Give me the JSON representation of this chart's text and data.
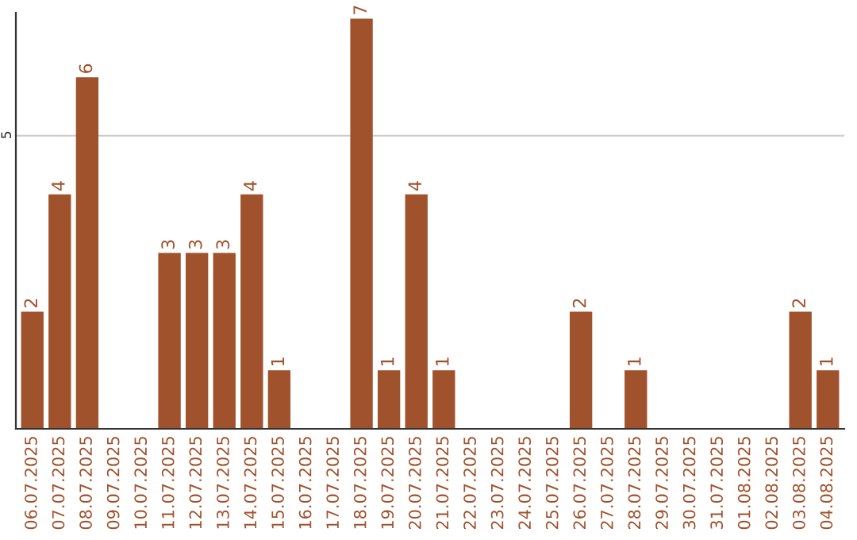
{
  "chart_data": {
    "type": "bar",
    "categories": [
      "06.07.2025",
      "07.07.2025",
      "08.07.2025",
      "09.07.2025",
      "10.07.2025",
      "11.07.2025",
      "12.07.2025",
      "13.07.2025",
      "14.07.2025",
      "15.07.2025",
      "16.07.2025",
      "17.07.2025",
      "18.07.2025",
      "19.07.2025",
      "20.07.2025",
      "21.07.2025",
      "22.07.2025",
      "23.07.2025",
      "24.07.2025",
      "25.07.2025",
      "26.07.2025",
      "27.07.2025",
      "28.07.2025",
      "29.07.2025",
      "30.07.2025",
      "31.07.2025",
      "01.08.2025",
      "02.08.2025",
      "03.08.2025",
      "04.08.2025"
    ],
    "values": [
      2,
      4,
      6,
      0,
      0,
      3,
      3,
      3,
      4,
      1,
      0,
      0,
      7,
      1,
      4,
      1,
      0,
      0,
      0,
      0,
      2,
      0,
      1,
      0,
      0,
      0,
      0,
      0,
      2,
      1
    ],
    "value_labels": [
      "2",
      "4",
      "6",
      null,
      null,
      "3",
      "3",
      "3",
      "4",
      "1",
      null,
      null,
      "7",
      "1",
      "4",
      "1",
      null,
      null,
      null,
      null,
      "2",
      null,
      "1",
      null,
      null,
      null,
      null,
      null,
      "2",
      "1"
    ],
    "color": "#a0522d",
    "ylim": [
      0,
      7.1
    ],
    "yticks": [
      5
    ],
    "grid": "y"
  }
}
